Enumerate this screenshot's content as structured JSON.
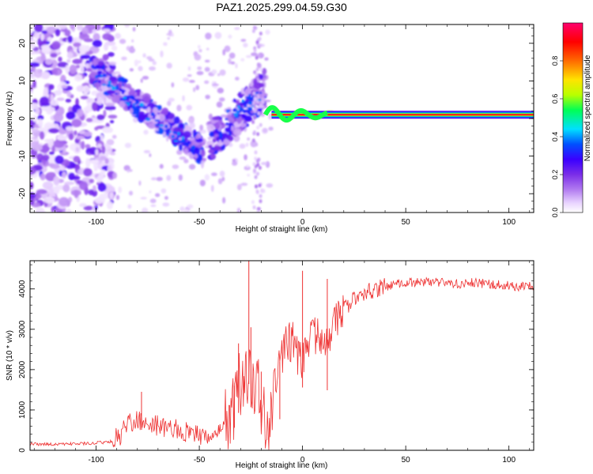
{
  "figure_title": "PAZ1.2025.299.04.59.G30",
  "chart_data": [
    {
      "type": "heatmap",
      "title": "",
      "xlabel": "Height of straight line (km)",
      "ylabel": "Frequency (Hz)",
      "xlim": [
        -132,
        112
      ],
      "ylim": [
        -25,
        25
      ],
      "xticks": [
        -100,
        -50,
        0,
        50,
        100
      ],
      "yticks": [
        -20,
        -10,
        0,
        10,
        20
      ],
      "colorbar": {
        "label": "Normalized spectral amplitude",
        "range": [
          0,
          1
        ],
        "ticks": [
          0.0,
          0.2,
          0.4,
          0.6,
          0.8
        ],
        "colormap": [
          "#ffffff",
          "#e9d4ff",
          "#b27cf0",
          "#7b2ee8",
          "#3a00ff",
          "#0050ff",
          "#00e0ff",
          "#00ff55",
          "#b8ff00",
          "#ffe400",
          "#ff6a00",
          "#ff0000",
          "#ff006e"
        ]
      },
      "features": [
        {
          "name": "carrier-tone",
          "x": [
            -15,
            112
          ],
          "frequency_hz": 1,
          "amplitude": 1.0
        },
        {
          "name": "doppler-branch",
          "x": [
            -100,
            -52
          ],
          "frequency_hz": [
            12,
            -9
          ],
          "amplitude": 0.35
        },
        {
          "name": "doppler-branch-2",
          "x": [
            -40,
            -20
          ],
          "frequency_hz": [
            -10,
            6
          ],
          "amplitude": 0.3
        },
        {
          "name": "noise-region",
          "x": [
            -132,
            -95
          ],
          "frequency_hz": [
            -25,
            25
          ],
          "amplitude": 0.15
        }
      ]
    },
    {
      "type": "line",
      "title": "",
      "xlabel": "Height of straight line (km)",
      "ylabel": "SNR (10 * v/v)",
      "xlim": [
        -132,
        112
      ],
      "ylim": [
        0,
        4700
      ],
      "xticks": [
        -100,
        -50,
        0,
        50,
        100
      ],
      "yticks": [
        0,
        1000,
        2000,
        3000,
        4000
      ],
      "series": [
        {
          "name": "SNR",
          "color": "#ee3333",
          "x": [
            -132,
            -120,
            -110,
            -100,
            -92,
            -88,
            -84,
            -80,
            -76,
            -72,
            -68,
            -64,
            -60,
            -56,
            -52,
            -48,
            -44,
            -40,
            -37,
            -34,
            -32,
            -30,
            -28,
            -26,
            -24,
            -22,
            -20,
            -18,
            -16,
            -14,
            -12,
            -10,
            -8,
            -6,
            -4,
            -2,
            0,
            2,
            4,
            6,
            8,
            10,
            12,
            14,
            16,
            18,
            20,
            22,
            24,
            26,
            28,
            30,
            32,
            35,
            40,
            45,
            50,
            55,
            60,
            65,
            70,
            75,
            80,
            85,
            90,
            95,
            100,
            105,
            112
          ],
          "values": [
            150,
            150,
            160,
            180,
            220,
            400,
            650,
            760,
            700,
            620,
            600,
            560,
            500,
            450,
            420,
            380,
            400,
            500,
            700,
            900,
            1300,
            1700,
            2000,
            1900,
            1700,
            1500,
            1100,
            800,
            300,
            1600,
            2000,
            2400,
            2600,
            2700,
            2750,
            2300,
            2100,
            2500,
            2800,
            2900,
            2900,
            2800,
            2600,
            2900,
            3200,
            3350,
            3500,
            3600,
            3700,
            3800,
            3850,
            3900,
            3950,
            4000,
            4050,
            4100,
            4150,
            4180,
            4180,
            4170,
            4150,
            4130,
            4150,
            4150,
            4130,
            4100,
            4080,
            4070,
            4050
          ],
          "spikes": [
            {
              "x": -78,
              "y": 1450
            },
            {
              "x": -33,
              "y": 1600
            },
            {
              "x": -31,
              "y": 2650
            },
            {
              "x": -26,
              "y": 4700
            },
            {
              "x": -25,
              "y": 3050
            },
            {
              "x": -20,
              "y": 1950
            },
            {
              "x": -11,
              "y": 2200
            },
            {
              "x": 0,
              "y": 4450
            },
            {
              "x": 12,
              "y": 4250
            }
          ]
        }
      ]
    }
  ]
}
